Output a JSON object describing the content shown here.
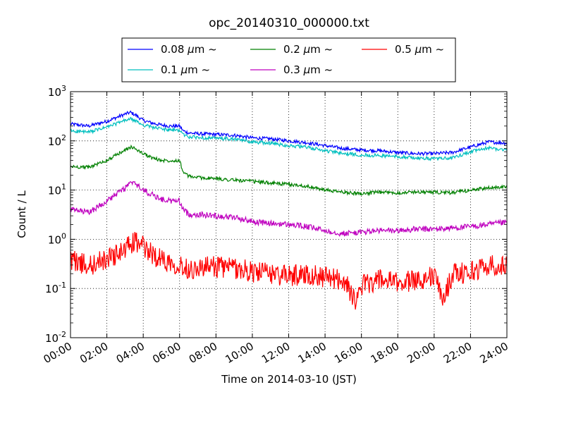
{
  "chart_data": {
    "type": "line",
    "title": "opc_20140310_000000.txt",
    "xlabel": "Time on 2014-03-10 (JST)",
    "ylabel": "Count / L",
    "x_unit": "hour of day",
    "xlim": [
      0,
      24
    ],
    "ylim": [
      0.01,
      1000
    ],
    "y_scale": "log",
    "grid": true,
    "legend_position": "top, above plot, 3 columns",
    "x_ticks": [
      "00:00",
      "02:00",
      "04:00",
      "06:00",
      "08:00",
      "10:00",
      "12:00",
      "14:00",
      "16:00",
      "18:00",
      "20:00",
      "22:00",
      "24:00"
    ],
    "y_ticks": [
      {
        "value": 0.01,
        "base": "10",
        "exp": "-2"
      },
      {
        "value": 0.1,
        "base": "10",
        "exp": "-1"
      },
      {
        "value": 1,
        "base": "10",
        "exp": "0"
      },
      {
        "value": 10,
        "base": "10",
        "exp": "1"
      },
      {
        "value": 100,
        "base": "10",
        "exp": "2"
      },
      {
        "value": 1000,
        "base": "10",
        "exp": "3"
      }
    ],
    "series": [
      {
        "name": "0.08 μm ~",
        "label_main": "0.08 ",
        "label_unit": "μm",
        "label_tilde": "~",
        "color": "#0000ff",
        "x": [
          0,
          1,
          2,
          3,
          3.3,
          3.6,
          4,
          4.5,
          5,
          5.5,
          6,
          6.2,
          6.5,
          7,
          8,
          9,
          10,
          11,
          12,
          13,
          14,
          15,
          16,
          17,
          18,
          19,
          20,
          21,
          22,
          23,
          24
        ],
        "y": [
          220,
          200,
          250,
          350,
          380,
          330,
          260,
          230,
          210,
          200,
          200,
          160,
          145,
          140,
          135,
          130,
          115,
          110,
          100,
          92,
          80,
          70,
          65,
          63,
          58,
          55,
          55,
          58,
          75,
          95,
          90
        ]
      },
      {
        "name": "0.1 μm ~",
        "label_main": "0.1 ",
        "label_unit": "μm",
        "label_tilde": "~",
        "color": "#00bfbf",
        "x": [
          0,
          1,
          2,
          3,
          3.3,
          3.6,
          4,
          4.5,
          5,
          5.5,
          6,
          6.2,
          6.5,
          7,
          8,
          9,
          10,
          11,
          12,
          13,
          14,
          15,
          16,
          17,
          18,
          19,
          20,
          21,
          22,
          23,
          24
        ],
        "y": [
          160,
          150,
          190,
          260,
          280,
          250,
          210,
          190,
          175,
          165,
          165,
          135,
          120,
          118,
          112,
          108,
          95,
          90,
          80,
          74,
          63,
          55,
          52,
          50,
          48,
          45,
          43,
          45,
          60,
          72,
          65
        ]
      },
      {
        "name": "0.2 μm ~",
        "label_main": "0.2 ",
        "label_unit": "μm",
        "label_tilde": "~",
        "color": "#008000",
        "x": [
          0,
          1,
          2,
          3,
          3.3,
          3.6,
          4,
          4.5,
          5,
          5.5,
          6,
          6.2,
          6.5,
          7,
          8,
          9,
          10,
          11,
          12,
          13,
          14,
          15,
          16,
          17,
          18,
          19,
          20,
          21,
          22,
          23,
          24
        ],
        "y": [
          30,
          29,
          40,
          65,
          75,
          68,
          55,
          45,
          40,
          40,
          40,
          23,
          19,
          18,
          17,
          16,
          15,
          14,
          13,
          12,
          10,
          9,
          8.5,
          9,
          8.8,
          9.2,
          9,
          8.8,
          10,
          11,
          12
        ]
      },
      {
        "name": "0.3 μm ~",
        "label_main": "0.3 ",
        "label_unit": "μm",
        "label_tilde": "~",
        "color": "#bf00bf",
        "x": [
          0,
          1,
          2,
          3,
          3.3,
          3.6,
          4,
          4.5,
          5,
          5.5,
          6,
          6.2,
          6.5,
          7,
          8,
          9,
          10,
          11,
          12,
          13,
          14,
          15,
          16,
          17,
          18,
          19,
          20,
          21,
          22,
          23,
          24
        ],
        "y": [
          4,
          3.5,
          6,
          11,
          14,
          13,
          10,
          8,
          6.5,
          6,
          6,
          4,
          3.2,
          3.2,
          3,
          2.8,
          2.3,
          2.1,
          2,
          1.8,
          1.5,
          1.3,
          1.4,
          1.5,
          1.5,
          1.6,
          1.6,
          1.7,
          1.8,
          2,
          2.2
        ]
      },
      {
        "name": "0.5 μm ~",
        "label_main": "0.5 ",
        "label_unit": "μm",
        "label_tilde": "~",
        "color": "#ff0000",
        "x": [
          0,
          1,
          2,
          3,
          3.3,
          3.6,
          4,
          4.5,
          5,
          5.5,
          6,
          6.5,
          7,
          8,
          9,
          10,
          11,
          12,
          13,
          14,
          15,
          15.8,
          16,
          17,
          18,
          19,
          20,
          20.5,
          21,
          22,
          23,
          24
        ],
        "y": [
          0.4,
          0.28,
          0.4,
          0.6,
          0.8,
          0.9,
          0.7,
          0.5,
          0.4,
          0.35,
          0.3,
          0.25,
          0.26,
          0.28,
          0.26,
          0.22,
          0.2,
          0.18,
          0.2,
          0.17,
          0.15,
          0.05,
          0.12,
          0.15,
          0.13,
          0.15,
          0.18,
          0.06,
          0.2,
          0.22,
          0.3,
          0.28
        ]
      }
    ]
  }
}
